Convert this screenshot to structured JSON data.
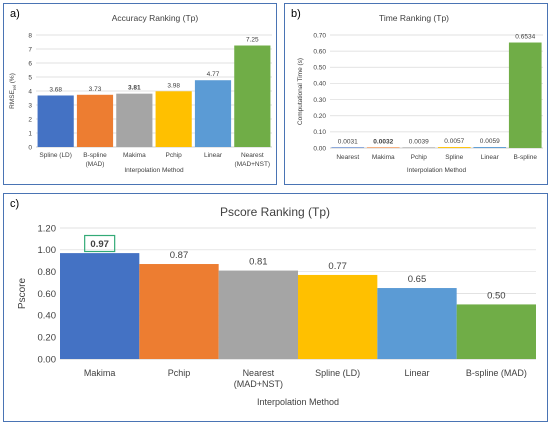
{
  "panels": {
    "a": {
      "letter": "a)"
    },
    "b": {
      "letter": "b)"
    },
    "c": {
      "letter": "c)"
    }
  },
  "chart_data": [
    {
      "id": "a",
      "type": "bar",
      "title": "Accuracy Ranking (Tp)",
      "xlabel": "Interpolation Method",
      "ylabel": "RMSErel (%)",
      "ylabel_main": "RMSE",
      "ylabel_sub": "rel",
      "ylabel_suffix": " (%)",
      "categories": [
        [
          "Spline (LD)"
        ],
        [
          "B-spline",
          "(MAD)"
        ],
        [
          "Makima"
        ],
        [
          "Pchip"
        ],
        [
          "Linear"
        ],
        [
          "Nearest",
          "(MAD+NST)"
        ]
      ],
      "values": [
        3.68,
        3.73,
        3.81,
        3.98,
        4.77,
        7.25
      ],
      "value_labels": [
        "3.68",
        "3.73",
        "3.81",
        "3.98",
        "4.77",
        "7.25"
      ],
      "highlight_index": 2,
      "colors": [
        "#4472c4",
        "#ed7d31",
        "#a5a5a5",
        "#ffc000",
        "#5b9bd5",
        "#70ad47"
      ],
      "ylim": [
        0,
        8
      ],
      "yticks": [
        0,
        1,
        2,
        3,
        4,
        5,
        6,
        7,
        8
      ],
      "ytick_labels": [
        "0",
        "1",
        "2",
        "3",
        "4",
        "5",
        "6",
        "7",
        "8"
      ],
      "grid": true
    },
    {
      "id": "b",
      "type": "bar",
      "title": "Time Ranking (Tp)",
      "xlabel": "Interpolation Method",
      "ylabel": "Computational Time (s)",
      "categories": [
        [
          "Nearest"
        ],
        [
          "Makima"
        ],
        [
          "Pchip"
        ],
        [
          "Spline"
        ],
        [
          "Linear"
        ],
        [
          "B-spline"
        ]
      ],
      "values": [
        0.0031,
        0.0032,
        0.0039,
        0.0057,
        0.0059,
        0.6534
      ],
      "value_labels": [
        "0.0031",
        "0.0032",
        "0.0039",
        "0.0057",
        "0.0059",
        "0.6534"
      ],
      "highlight_index": 1,
      "colors": [
        "#4472c4",
        "#ed7d31",
        "#a5a5a5",
        "#ffc000",
        "#5b9bd5",
        "#70ad47"
      ],
      "ylim": [
        0,
        0.7
      ],
      "yticks": [
        0,
        0.1,
        0.2,
        0.3,
        0.4,
        0.5,
        0.6,
        0.7
      ],
      "ytick_labels": [
        "0.00",
        "0.10",
        "0.20",
        "0.30",
        "0.40",
        "0.50",
        "0.60",
        "0.70"
      ],
      "grid": true
    },
    {
      "id": "c",
      "type": "bar",
      "title": "Pscore Ranking (Tp)",
      "xlabel": "Interpolation Method",
      "ylabel": "Pscore",
      "categories": [
        [
          "Makima"
        ],
        [
          "Pchip"
        ],
        [
          "Nearest",
          "(MAD+NST)"
        ],
        [
          "Spline (LD)"
        ],
        [
          "Linear"
        ],
        [
          "B-spline (MAD)"
        ]
      ],
      "values": [
        0.97,
        0.87,
        0.81,
        0.77,
        0.65,
        0.5
      ],
      "value_labels": [
        "0.97",
        "0.87",
        "0.81",
        "0.77",
        "0.65",
        "0.50"
      ],
      "highlight_index": 0,
      "highlight_box_color": "#33aa77",
      "colors": [
        "#4472c4",
        "#ed7d31",
        "#a5a5a5",
        "#ffc000",
        "#5b9bd5",
        "#70ad47"
      ],
      "ylim": [
        0,
        1.2
      ],
      "yticks": [
        0,
        0.2,
        0.4,
        0.6,
        0.8,
        1.0,
        1.2
      ],
      "ytick_labels": [
        "0.00",
        "0.20",
        "0.40",
        "0.60",
        "0.80",
        "1.00",
        "1.20"
      ],
      "grid": true
    }
  ]
}
